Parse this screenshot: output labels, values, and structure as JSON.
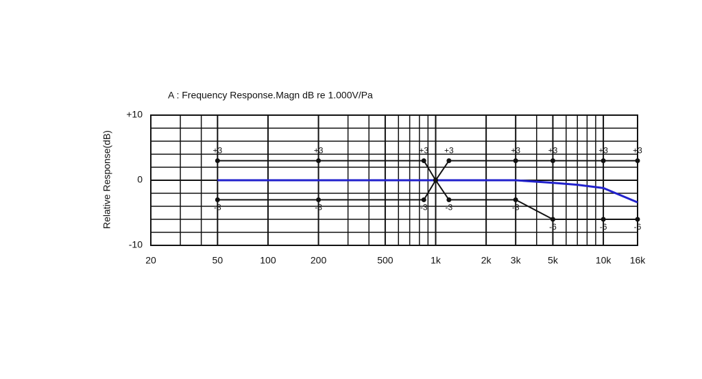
{
  "chart_data": {
    "type": "line",
    "title": "A : Frequency Response.Magn  dB re 1.000V/Pa",
    "y_label": "Relative Response(dB)",
    "log_x": true,
    "xlim": [
      20,
      16000
    ],
    "xticks": [
      20,
      50,
      100,
      200,
      500,
      {
        "value": 1000,
        "label": "1k"
      },
      {
        "value": 2000,
        "label": "2k"
      },
      {
        "value": 3000,
        "label": "3k"
      },
      {
        "value": 5000,
        "label": "5k"
      },
      {
        "value": 10000,
        "label": "10k"
      },
      {
        "value": 16000,
        "label": "16k"
      }
    ],
    "xminorticks": [
      30,
      40,
      300,
      400,
      600,
      700,
      800,
      900,
      4000,
      6000,
      7000,
      8000,
      9000
    ],
    "ylim": [
      -10,
      10
    ],
    "yticks": [
      {
        "value": 10,
        "label": "+10"
      },
      0,
      -10
    ],
    "yminorticks": [
      -8,
      -6,
      -4,
      -2,
      2,
      4,
      6,
      8
    ],
    "grid": true,
    "series": [
      {
        "color": "#2222cc",
        "x": [
          50,
          100,
          200,
          500,
          1000,
          2000,
          3000,
          5000,
          7000,
          10000,
          16000
        ],
        "values": [
          0,
          0,
          0,
          0,
          0,
          0,
          0,
          -0.4,
          -0.7,
          -1.2,
          -3.4
        ]
      },
      {
        "color": "#111111",
        "markers": true,
        "x": [
          50,
          200,
          850,
          1000,
          1200,
          3000,
          5000,
          10000,
          16000
        ],
        "values": [
          3,
          3,
          3,
          0,
          3,
          3,
          3,
          3,
          3
        ],
        "value_labels": [
          "+3",
          "+3",
          "+3",
          null,
          "+3",
          "+3",
          "+3",
          "+3",
          "+3"
        ],
        "label_side": "above"
      },
      {
        "color": "#111111",
        "markers": true,
        "x": [
          50,
          200,
          850,
          1000,
          1200,
          3000,
          5000,
          10000,
          16000
        ],
        "values": [
          -3,
          -3,
          -3,
          0,
          -3,
          -3,
          -6,
          -6,
          -6
        ],
        "value_labels": [
          "-3",
          "-3",
          "-3",
          null,
          "-3",
          "-3",
          "-6",
          "-6",
          "-6"
        ],
        "label_side": "below"
      }
    ]
  }
}
